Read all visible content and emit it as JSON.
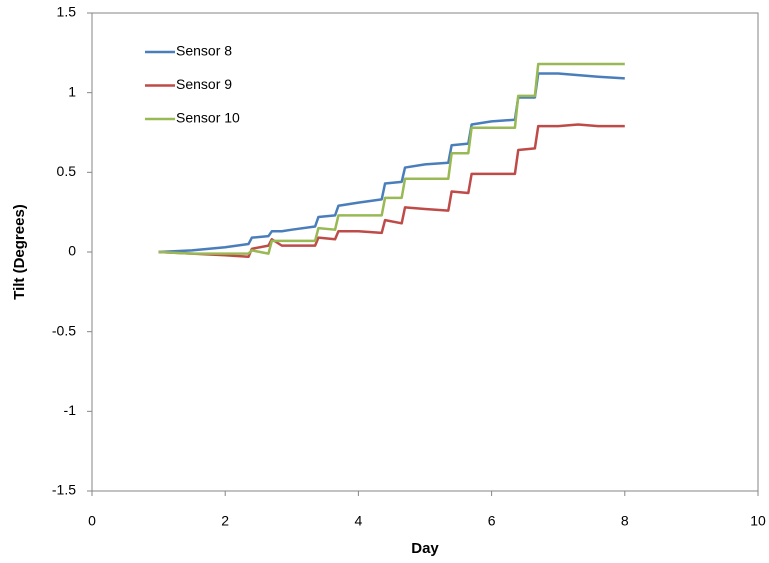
{
  "chart_data": {
    "type": "line",
    "xlabel": "Day",
    "ylabel": "Tilt (Degrees)",
    "x": [
      1,
      1.5,
      2,
      2.35,
      2.4,
      2.65,
      2.7,
      2.85,
      3,
      3.35,
      3.4,
      3.65,
      3.7,
      4,
      4.35,
      4.4,
      4.65,
      4.7,
      5,
      5.35,
      5.4,
      5.65,
      5.7,
      6,
      6.35,
      6.4,
      6.65,
      6.7,
      7,
      7.3,
      7.6,
      8
    ],
    "series": [
      {
        "name": "Sensor 8",
        "color": "#4a7ebb",
        "values": [
          0,
          0.01,
          0.03,
          0.05,
          0.09,
          0.1,
          0.13,
          0.13,
          0.14,
          0.16,
          0.22,
          0.23,
          0.29,
          0.31,
          0.33,
          0.43,
          0.44,
          0.53,
          0.55,
          0.56,
          0.67,
          0.68,
          0.8,
          0.82,
          0.83,
          0.97,
          0.97,
          1.12,
          1.12,
          1.11,
          1.1,
          1.09
        ]
      },
      {
        "name": "Sensor 9",
        "color": "#be4b48",
        "values": [
          0,
          -0.01,
          -0.02,
          -0.03,
          0.02,
          0.04,
          0.08,
          0.04,
          0.04,
          0.04,
          0.09,
          0.08,
          0.13,
          0.13,
          0.12,
          0.2,
          0.18,
          0.28,
          0.27,
          0.26,
          0.38,
          0.37,
          0.49,
          0.49,
          0.49,
          0.64,
          0.65,
          0.79,
          0.79,
          0.8,
          0.79,
          0.79
        ]
      },
      {
        "name": "Sensor 10",
        "color": "#98b954",
        "values": [
          0,
          -0.01,
          -0.01,
          -0.01,
          0.01,
          -0.01,
          0.07,
          0.07,
          0.07,
          0.07,
          0.15,
          0.14,
          0.23,
          0.23,
          0.23,
          0.34,
          0.34,
          0.46,
          0.46,
          0.46,
          0.62,
          0.62,
          0.78,
          0.78,
          0.78,
          0.98,
          0.98,
          1.18,
          1.18,
          1.18,
          1.18,
          1.18
        ]
      }
    ],
    "xlim": [
      0,
      10
    ],
    "xticks": [
      0,
      2,
      4,
      6,
      8,
      10
    ],
    "ylim": [
      -1.5,
      1.5
    ],
    "yticks": [
      -1.5,
      -1,
      -0.5,
      0,
      0.5,
      1,
      1.5
    ],
    "grid": false,
    "legend": "upper-left"
  }
}
